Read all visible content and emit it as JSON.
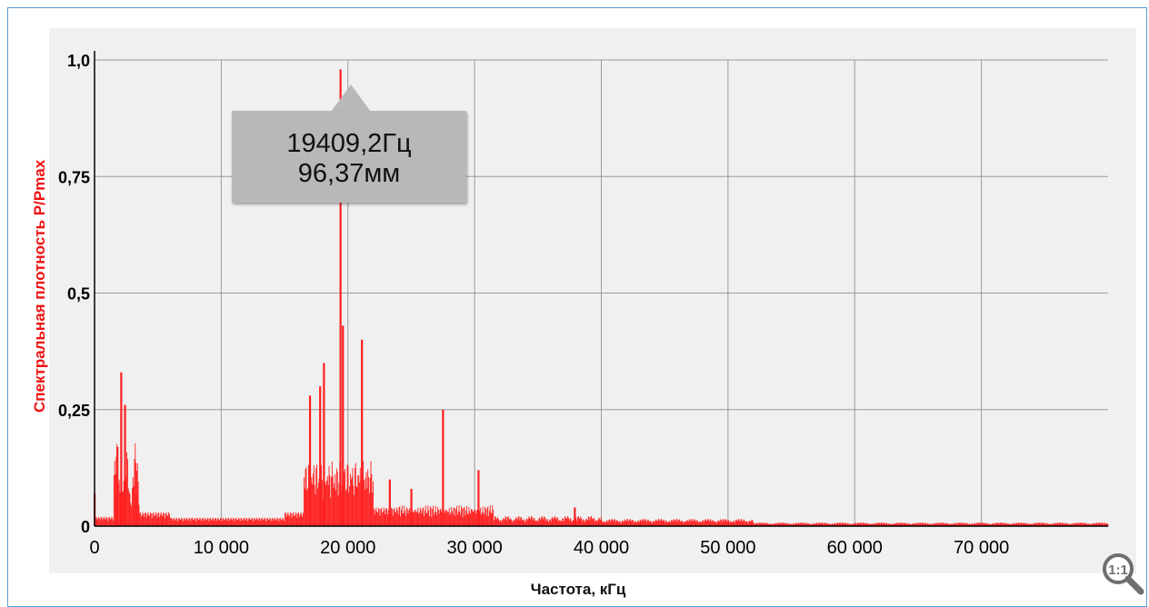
{
  "chart_data": {
    "type": "bar",
    "xlabel": "Частота, кГц",
    "ylabel": "Спектральная плотность P/Pmax",
    "xlim": [
      0,
      80000
    ],
    "ylim": [
      0,
      1.0
    ],
    "x_ticks": [
      {
        "value": 0,
        "label": "0"
      },
      {
        "value": 10000,
        "label": "10 000"
      },
      {
        "value": 20000,
        "label": "20 000"
      },
      {
        "value": 30000,
        "label": "30 000"
      },
      {
        "value": 40000,
        "label": "40 000"
      },
      {
        "value": 50000,
        "label": "50 000"
      },
      {
        "value": 60000,
        "label": "60 000"
      },
      {
        "value": 70000,
        "label": "70 000"
      }
    ],
    "y_ticks": [
      {
        "value": 0,
        "label": "0"
      },
      {
        "value": 0.25,
        "label": "0,25"
      },
      {
        "value": 0.5,
        "label": "0,5"
      },
      {
        "value": 0.75,
        "label": "0,75"
      },
      {
        "value": 1.0,
        "label": "1,0"
      }
    ],
    "grid": true,
    "bar_color": "#ff2020",
    "peaks": [
      {
        "x": 0,
        "y": 0.07
      },
      {
        "x": 1800,
        "y": 0.17
      },
      {
        "x": 2100,
        "y": 0.33
      },
      {
        "x": 2400,
        "y": 0.26
      },
      {
        "x": 3300,
        "y": 0.07
      },
      {
        "x": 17000,
        "y": 0.28
      },
      {
        "x": 17800,
        "y": 0.3
      },
      {
        "x": 18100,
        "y": 0.35
      },
      {
        "x": 19409.2,
        "y": 0.98
      },
      {
        "x": 19600,
        "y": 0.43
      },
      {
        "x": 21100,
        "y": 0.4
      },
      {
        "x": 23300,
        "y": 0.1
      },
      {
        "x": 25000,
        "y": 0.08
      },
      {
        "x": 27500,
        "y": 0.25
      },
      {
        "x": 30300,
        "y": 0.12
      },
      {
        "x": 37900,
        "y": 0.04
      }
    ],
    "annotation": {
      "x": 19409.2,
      "y": 0.98,
      "line1": "19409,2Гц",
      "line2": "96,37мм"
    }
  },
  "ui": {
    "zoom_reset_label": "1:1",
    "zoom_icon": "magnifier-reset-icon"
  }
}
